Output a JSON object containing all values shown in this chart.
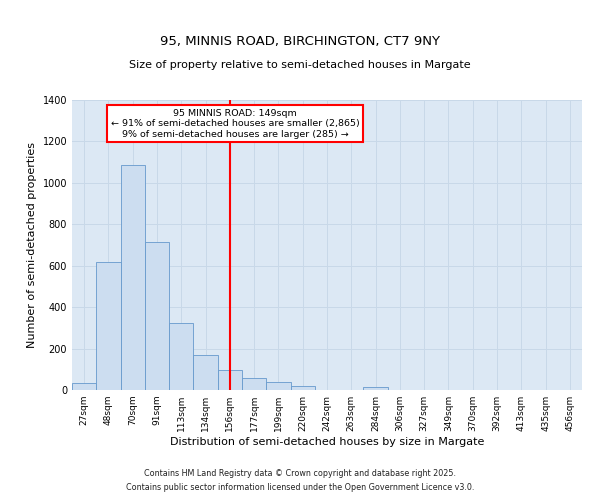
{
  "title": "95, MINNIS ROAD, BIRCHINGTON, CT7 9NY",
  "subtitle": "Size of property relative to semi-detached houses in Margate",
  "xlabel": "Distribution of semi-detached houses by size in Margate",
  "ylabel": "Number of semi-detached properties",
  "bar_labels": [
    "27sqm",
    "48sqm",
    "70sqm",
    "91sqm",
    "113sqm",
    "134sqm",
    "156sqm",
    "177sqm",
    "199sqm",
    "220sqm",
    "242sqm",
    "263sqm",
    "284sqm",
    "306sqm",
    "327sqm",
    "349sqm",
    "370sqm",
    "392sqm",
    "413sqm",
    "435sqm",
    "456sqm"
  ],
  "bar_values": [
    35,
    620,
    1085,
    715,
    325,
    170,
    95,
    60,
    40,
    20,
    0,
    0,
    15,
    0,
    0,
    0,
    0,
    0,
    0,
    0,
    0
  ],
  "bar_color": "#ccddf0",
  "bar_edge_color": "#6699cc",
  "vline_x": 6,
  "vline_color": "red",
  "annotation_title": "95 MINNIS ROAD: 149sqm",
  "annotation_line1": "← 91% of semi-detached houses are smaller (2,865)",
  "annotation_line2": "9% of semi-detached houses are larger (285) →",
  "annotation_box_color": "white",
  "annotation_box_edge_color": "red",
  "ylim": [
    0,
    1400
  ],
  "yticks": [
    0,
    200,
    400,
    600,
    800,
    1000,
    1200,
    1400
  ],
  "grid_color": "#c8d8e8",
  "bg_color": "#dce8f4",
  "footer1": "Contains HM Land Registry data © Crown copyright and database right 2025.",
  "footer2": "Contains public sector information licensed under the Open Government Licence v3.0."
}
